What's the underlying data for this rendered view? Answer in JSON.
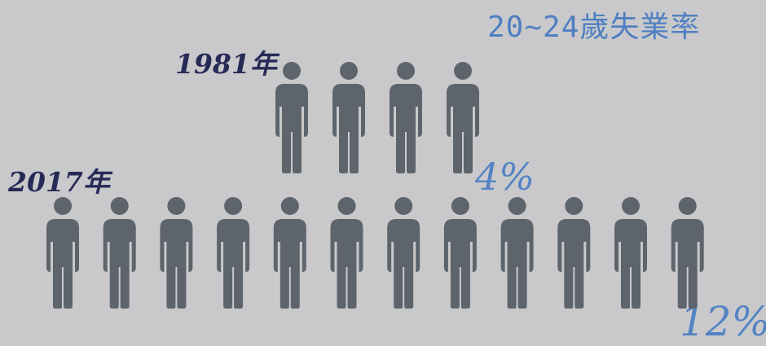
{
  "colors": {
    "background": "#c9c9cb",
    "figure": "#5e646c",
    "title": "#4f7fc1",
    "year": "#262a57",
    "percent": "#5483c4"
  },
  "chart_data": {
    "type": "pictogram",
    "title": "20~24歲失業率",
    "icon": "person-icon",
    "series": [
      {
        "label": "1981年",
        "count": 4,
        "value": "4%"
      },
      {
        "label": "2017年",
        "count": 12,
        "value": "12%"
      }
    ]
  }
}
